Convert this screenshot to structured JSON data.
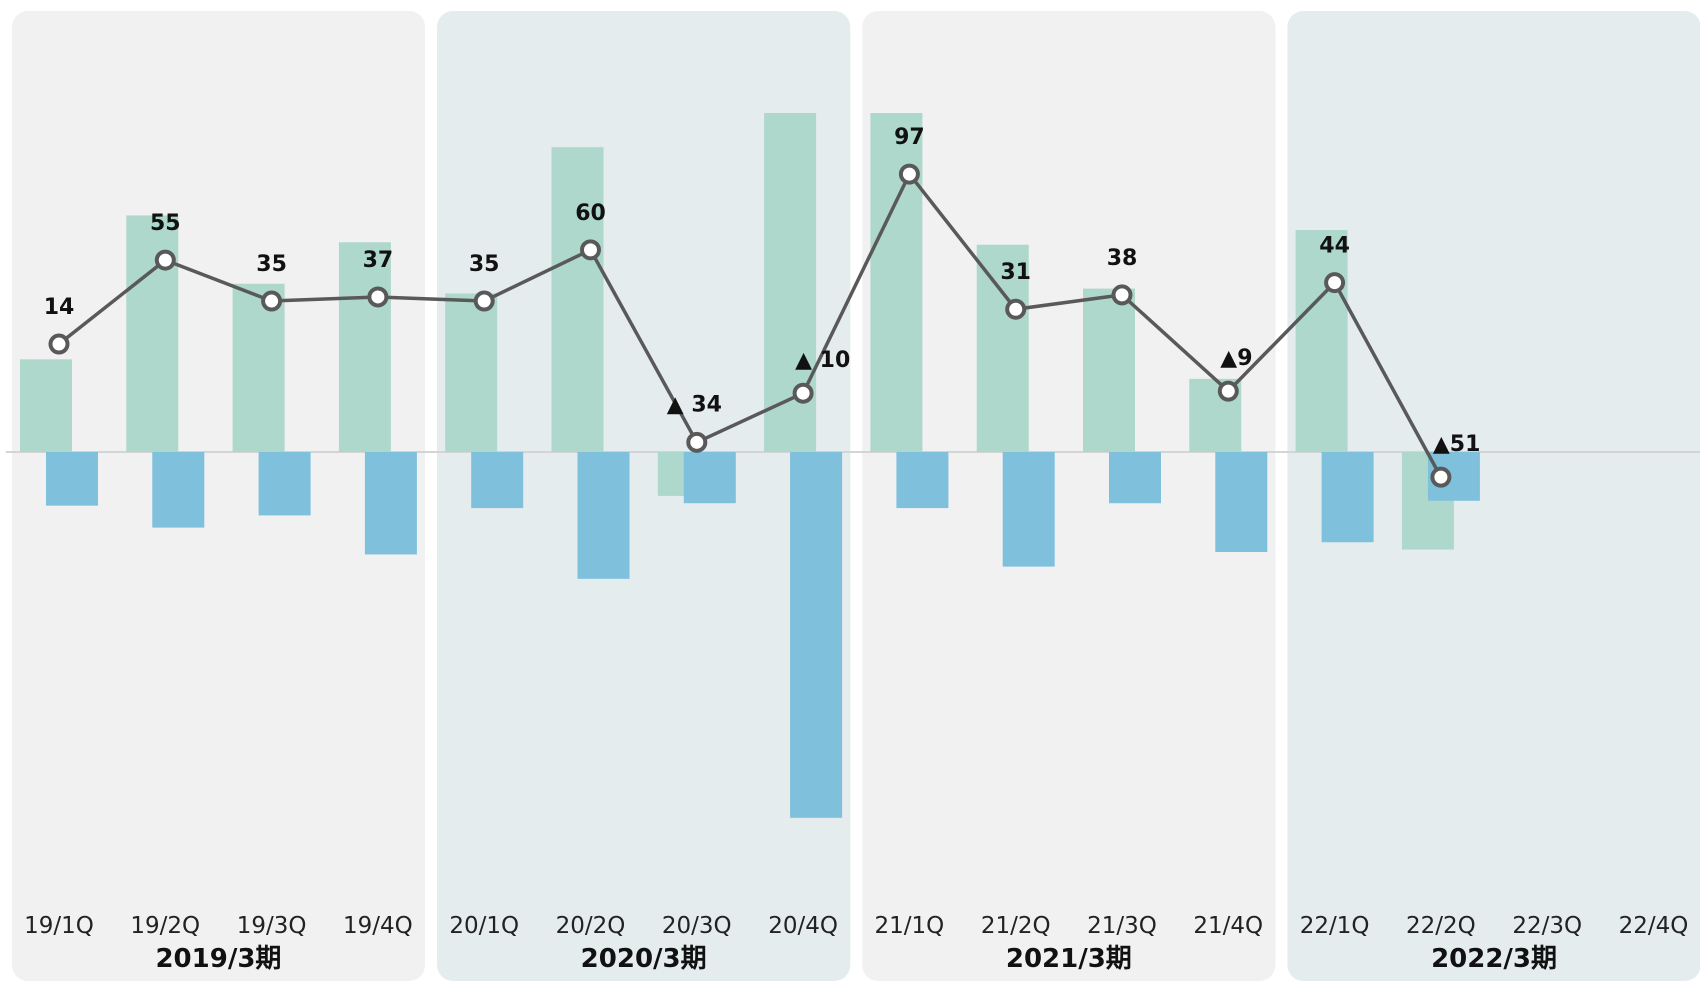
{
  "chart_data": {
    "type": "bar",
    "title": "",
    "xlabel": "",
    "ylabel": "",
    "categories": [
      "19/1Q",
      "19/2Q",
      "19/3Q",
      "19/4Q",
      "20/1Q",
      "20/2Q",
      "20/3Q",
      "20/4Q",
      "21/1Q",
      "21/2Q",
      "21/3Q",
      "21/4Q",
      "22/1Q",
      "22/2Q",
      "22/3Q",
      "22/4Q"
    ],
    "fiscal_periods": [
      {
        "label": "2019/3期",
        "start": 0,
        "end": 3,
        "color": "#f1f1f1"
      },
      {
        "label": "2020/3期",
        "start": 4,
        "end": 7,
        "color": "#e5ecee"
      },
      {
        "label": "2021/3期",
        "start": 8,
        "end": 11,
        "color": "#f1f1f1"
      },
      {
        "label": "2022/3期",
        "start": 12,
        "end": 15,
        "color": "#e5ecee"
      }
    ],
    "series": [
      {
        "type": "bar",
        "color": "#aed8cc",
        "values": [
          38,
          97,
          69,
          86,
          65,
          125,
          -18,
          139,
          139,
          85,
          67,
          30,
          91,
          -40,
          null,
          null
        ]
      },
      {
        "type": "bar",
        "color": "#7fc0dc",
        "values": [
          -22,
          -31,
          -26,
          -42,
          -23,
          -52,
          -21,
          -150,
          -23,
          -47,
          -21,
          -41,
          -37,
          -20,
          null,
          null
        ]
      },
      {
        "type": "line",
        "color": "#595959",
        "marker_fill": "#ffffff",
        "values": [
          14,
          55,
          35,
          37,
          35,
          60,
          -34,
          -10,
          97,
          31,
          38,
          -9,
          44,
          -51,
          null,
          null
        ],
        "data_labels": [
          "14",
          "55",
          "35",
          "37",
          "35",
          "60",
          "▲ 34",
          "▲ 10",
          "97",
          "31",
          "38",
          "▲9",
          "44",
          "▲51",
          "",
          ""
        ]
      }
    ],
    "bar_ylim": [
      -186,
      139
    ],
    "line_ylim": [
      -111,
      99
    ],
    "grid": false,
    "legend": "none"
  }
}
